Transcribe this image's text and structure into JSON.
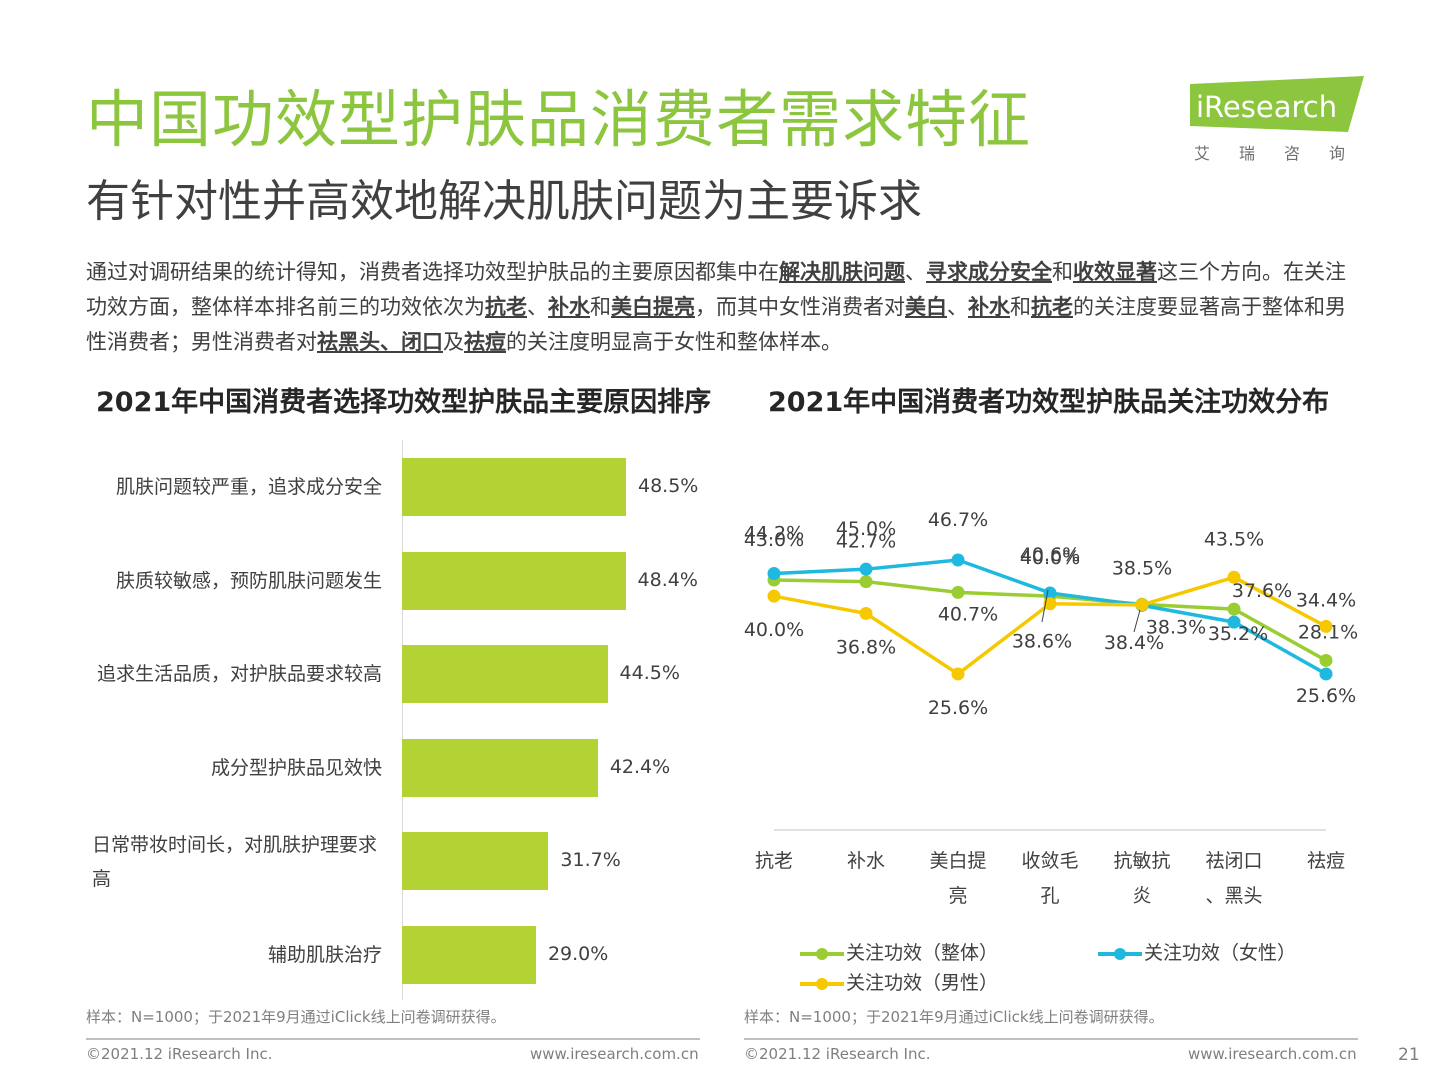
{
  "header": {
    "title": "中国功效型护肤品消费者需求特征",
    "subtitle": "有针对性并高效地解决肌肤问题为主要诉求",
    "logo_text": "iResearch",
    "logo_sub": "艾瑞咨询",
    "brand_color": "#8cc63f"
  },
  "intro": {
    "p1": "通过对调研结果的统计得知，消费者选择功效型护肤品的主要原因都集中在",
    "b1": "解决肌肤问题",
    "p2": "、",
    "b2": "寻求成分安全",
    "p3": "和",
    "b3": "收效显著",
    "p4": "这三个方向。在关注功效方面，整体样本排名前三的功效依次为",
    "b4": "抗老",
    "p5": "、",
    "b5": "补水",
    "p6": "和",
    "b6": "美白提亮",
    "p7": "，而其中女性消费者对",
    "b7": "美白",
    "p8": "、",
    "b8": "补水",
    "p9": "和",
    "b9": "抗老",
    "p10": "的关注度要显著高于整体和男性消费者；男性消费者对",
    "b10": "祛黑头、闭口",
    "p11": "及",
    "b11": "祛痘",
    "p12": "的关注度明显高于女性和整体样本。"
  },
  "chart_data": [
    {
      "type": "bar",
      "orientation": "horizontal",
      "title": "2021年中国消费者选择功效型护肤品主要原因排序",
      "categories": [
        "肌肤问题较严重，追求成分安全",
        "肤质较敏感，预防肌肤问题发生",
        "追求生活品质，对护肤品要求较高",
        "成分型护肤品见效快",
        "日常带妆时间长，对肌肤护理要求高",
        "辅助肌肤治疗"
      ],
      "values": [
        48.5,
        48.4,
        44.5,
        42.4,
        31.7,
        29.0
      ],
      "value_labels": [
        "48.5%",
        "48.4%",
        "44.5%",
        "42.4%",
        "31.7%",
        "29.0%"
      ],
      "color": "#b3d334",
      "xlim": [
        0,
        100
      ]
    },
    {
      "type": "line",
      "title": "2021年中国消费者功效型护肤品关注功效分布",
      "categories": [
        "抗老",
        "补水",
        "美白提亮",
        "收敛毛孔",
        "抗敏抗炎",
        "祛闭口、黑头",
        "祛痘"
      ],
      "series": [
        {
          "name": "关注功效（整体）",
          "color": "#9acd32",
          "values": [
            43.0,
            42.7,
            40.7,
            40.0,
            38.5,
            37.6,
            28.1
          ],
          "labels": [
            "43.0%",
            "42.7%",
            "40.7%",
            "40.0%",
            "38.5%",
            "37.6%",
            "28.1%"
          ]
        },
        {
          "name": "关注功效（女性）",
          "color": "#1fb9e0",
          "values": [
            44.2,
            45.0,
            46.7,
            40.6,
            38.3,
            35.2,
            25.6
          ],
          "labels": [
            "44.2%",
            "45.0%",
            "46.7%",
            "40.6%",
            "38.3%",
            "35.2%",
            "25.6%"
          ]
        },
        {
          "name": "关注功效（男性）",
          "color": "#f5c800",
          "values": [
            40.0,
            36.8,
            25.6,
            38.6,
            38.4,
            43.5,
            34.4
          ],
          "labels": [
            "40.0%",
            "36.8%",
            "25.6%",
            "38.6%",
            "38.4%",
            "43.5%",
            "34.4%"
          ]
        }
      ],
      "legend_position": "bottom",
      "grid": false
    }
  ],
  "notes": {
    "left": "样本：N=1000；于2021年9月通过iClick线上问卷调研获得。",
    "right": "样本：N=1000；于2021年9月通过iClick线上问卷调研获得。"
  },
  "footer": {
    "copyright_left": "©2021.12 iResearch Inc.",
    "url_left": "www.iresearch.com.cn",
    "copyright_right": "©2021.12 iResearch Inc.",
    "url_right": "www.iresearch.com.cn",
    "page_number": "21"
  }
}
